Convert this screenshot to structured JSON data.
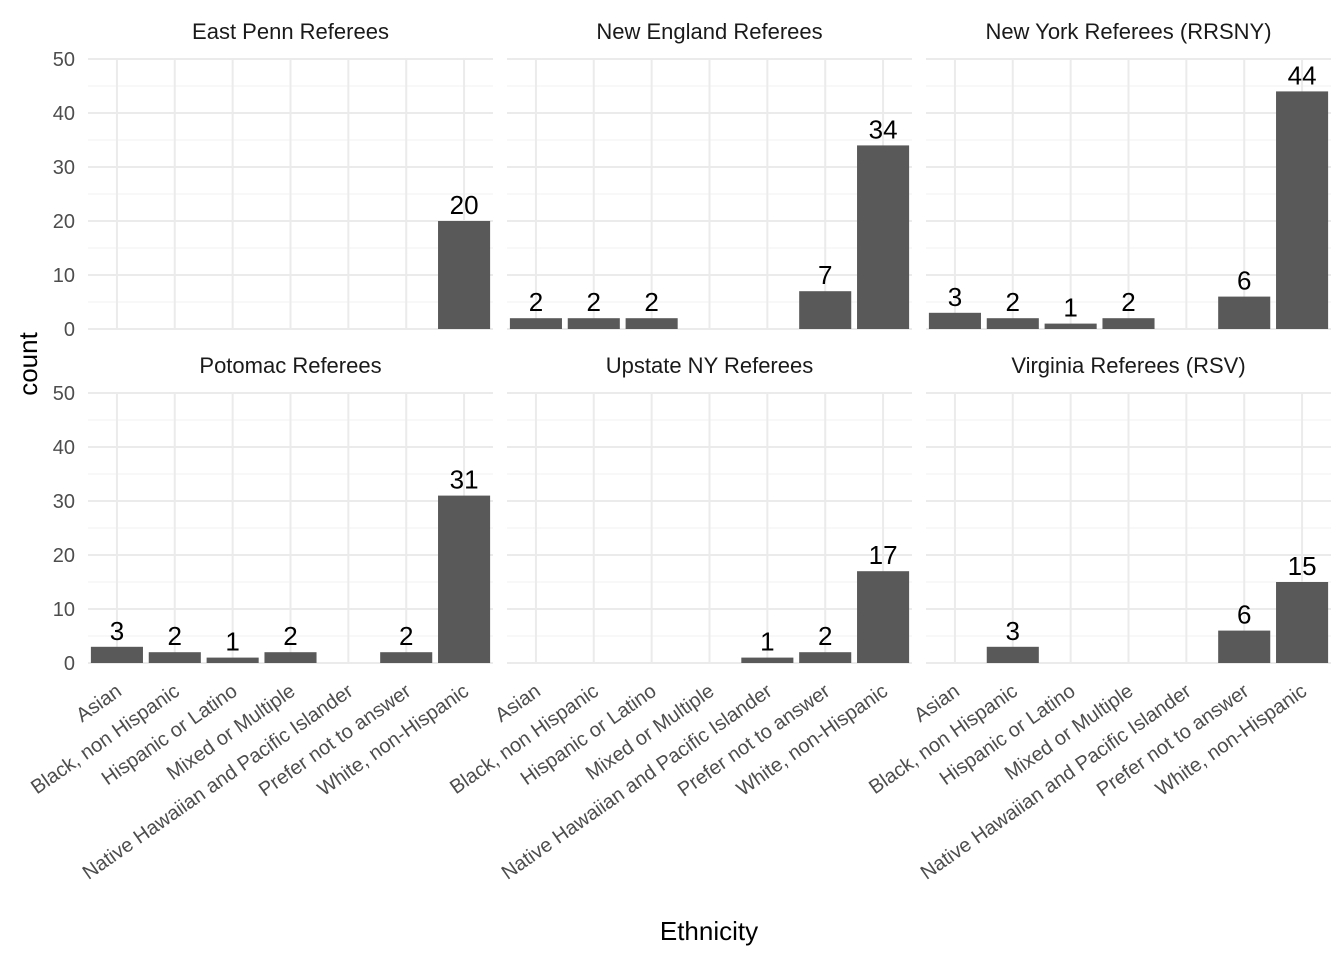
{
  "chart_data": {
    "type": "bar",
    "xlabel": "Ethnicity",
    "ylabel": "count",
    "ylim": [
      0,
      50
    ],
    "yticks": [
      0,
      10,
      20,
      30,
      40,
      50
    ],
    "grid": true,
    "bar_color": "#595959",
    "categories": [
      "Asian",
      "Black, non Hispanic",
      "Hispanic or Latino",
      "Mixed or Multiple",
      "Native Hawaiian and Pacific Islander",
      "Prefer not to answer",
      "White, non-Hispanic"
    ],
    "panels": [
      {
        "title": "East Penn Referees",
        "values": [
          null,
          null,
          null,
          null,
          null,
          null,
          20
        ]
      },
      {
        "title": "New England Referees",
        "values": [
          2,
          2,
          2,
          null,
          null,
          7,
          34
        ]
      },
      {
        "title": "New York Referees (RRSNY)",
        "values": [
          3,
          2,
          1,
          2,
          null,
          6,
          44
        ]
      },
      {
        "title": "Potomac Referees",
        "values": [
          3,
          2,
          1,
          2,
          null,
          2,
          31
        ]
      },
      {
        "title": "Upstate NY Referees",
        "values": [
          null,
          null,
          null,
          null,
          1,
          2,
          17
        ]
      },
      {
        "title": "Virginia Referees (RSV)",
        "values": [
          null,
          3,
          null,
          null,
          null,
          6,
          15
        ]
      }
    ]
  }
}
